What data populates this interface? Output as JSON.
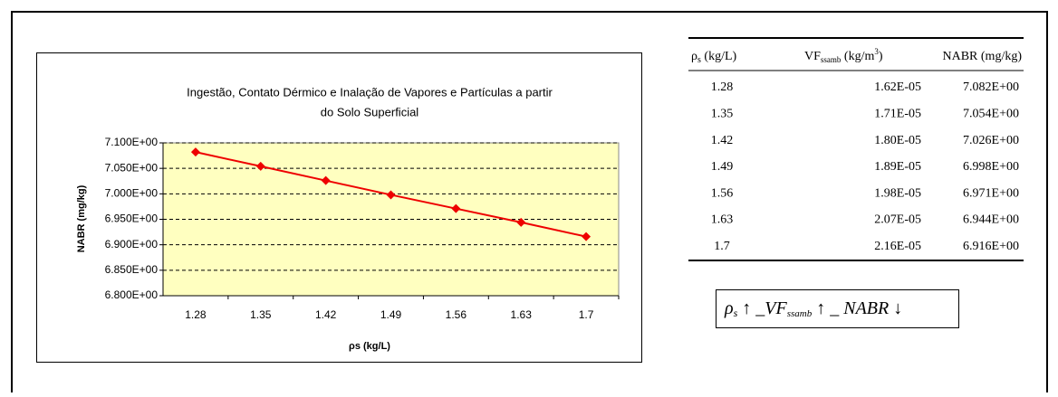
{
  "chart_data": {
    "type": "line",
    "title": [
      "Ingestão, Contato Dérmico e Inalação de Vapores e Partículas a partir",
      "do Solo Superficial"
    ],
    "x_label": "ρs (kg/L)",
    "y_label": "NABR (mg/kg)",
    "categories": [
      "1.28",
      "1.35",
      "1.42",
      "1.49",
      "1.56",
      "1.63",
      "1.7"
    ],
    "series": [
      {
        "name": "NABR",
        "color": "#ee0000",
        "values": [
          7.082,
          7.054,
          7.026,
          6.998,
          6.971,
          6.944,
          6.916
        ]
      }
    ],
    "ylim": [
      6.8,
      7.1
    ],
    "yticks": [
      {
        "value": 6.8,
        "label": "6.800E+00"
      },
      {
        "value": 6.85,
        "label": "6.850E+00"
      },
      {
        "value": 6.9,
        "label": "6.900E+00"
      },
      {
        "value": 6.95,
        "label": "6.950E+00"
      },
      {
        "value": 7.0,
        "label": "7.000E+00"
      },
      {
        "value": 7.05,
        "label": "7.050E+00"
      },
      {
        "value": 7.1,
        "label": "7.100E+00"
      }
    ],
    "grid": true,
    "background": "#ffffc0"
  },
  "table": {
    "header": [
      {
        "main": "ρ",
        "sub": "s",
        "rest": " (kg/L)"
      },
      {
        "main": "VF",
        "sub": "ssamb",
        "rest": " (kg/m",
        "sup": "3",
        "end": ")"
      },
      {
        "main": "NABR (mg/kg)"
      }
    ],
    "rows": [
      [
        "1.28",
        "1.62E-05",
        "7.082E+00"
      ],
      [
        "1.35",
        "1.71E-05",
        "7.054E+00"
      ],
      [
        "1.42",
        "1.80E-05",
        "7.026E+00"
      ],
      [
        "1.49",
        "1.89E-05",
        "6.998E+00"
      ],
      [
        "1.56",
        "1.98E-05",
        "6.971E+00"
      ],
      [
        "1.63",
        "2.07E-05",
        "6.944E+00"
      ],
      [
        "1.7",
        "2.16E-05",
        "6.916E+00"
      ]
    ]
  },
  "formula": {
    "a": "ρ",
    "a_sub": "s",
    "b": " ↑ _",
    "c": "VF",
    "c_sub": "ssamb",
    "d": " ↑ _ NABR ↓"
  }
}
